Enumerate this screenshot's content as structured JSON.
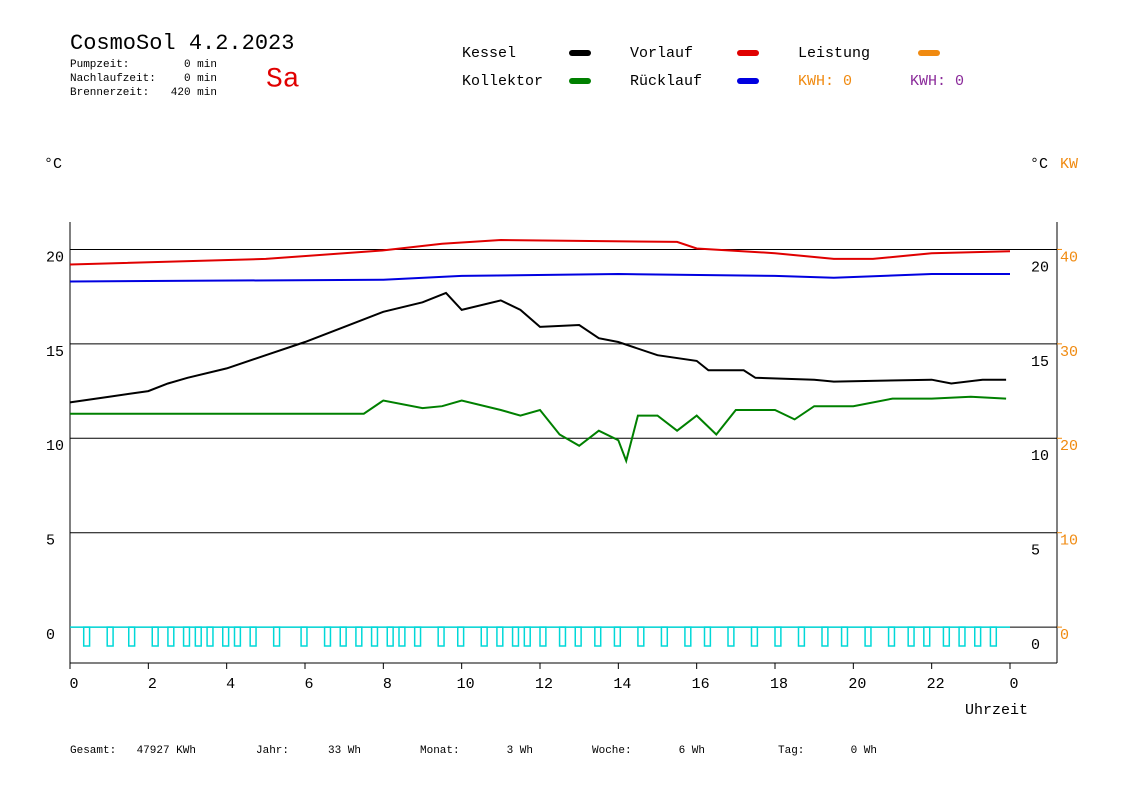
{
  "header": {
    "title": "CosmoSol 4.2.2023",
    "day": "Sa",
    "stats": [
      [
        "Pumpzeit:",
        "0 min"
      ],
      [
        "Nachlaufzeit:",
        "0 min"
      ],
      [
        "Brennerzeit:",
        "420 min"
      ]
    ],
    "kwh": [
      {
        "text": "KWH: 0",
        "color": "#f08a10"
      },
      {
        "text": "KWH: 0",
        "color": "#8a2a9a"
      }
    ]
  },
  "footer": [
    [
      "Gesamt:",
      "47927 KWh"
    ],
    [
      "Jahr:",
      "33 Wh"
    ],
    [
      "Monat:",
      "3 Wh"
    ],
    [
      "Woche:",
      "6 Wh"
    ],
    [
      "Tag:",
      "0 Wh"
    ]
  ],
  "chart_data": {
    "type": "line",
    "y_unit": "°C",
    "y2_unit": "°C",
    "y2_unit2": "KW",
    "x_label": "Uhrzeit",
    "xlim": [
      0,
      24
    ],
    "xticks": [
      0,
      2,
      4,
      6,
      8,
      10,
      12,
      14,
      16,
      18,
      20,
      22,
      {
        "value": 24,
        "label": "0"
      }
    ],
    "ylim": [
      -1.9,
      21.4
    ],
    "yticks": [
      0,
      5,
      10,
      15,
      20
    ],
    "y2lim": [
      -3.8,
      42.8
    ],
    "y2ticks": [
      0,
      10,
      20,
      30,
      40
    ],
    "grid": true,
    "series": [
      {
        "name": "Kessel",
        "color": "#000000",
        "x": [
          0,
          1,
          2,
          2.5,
          3,
          4,
          5,
          6,
          7,
          8,
          9,
          9.6,
          10,
          11,
          11.5,
          12,
          13,
          13.5,
          14,
          15,
          16,
          16.3,
          17.2,
          17.5,
          19,
          19.5,
          22,
          22.5,
          23.3,
          23.9
        ],
        "values": [
          11.9,
          12.2,
          12.5,
          12.9,
          13.2,
          13.7,
          14.4,
          15.1,
          15.9,
          16.7,
          17.2,
          17.7,
          16.8,
          17.3,
          16.8,
          15.9,
          16.0,
          15.3,
          15.1,
          14.4,
          14.1,
          13.6,
          13.6,
          13.2,
          13.1,
          13.0,
          13.1,
          12.9,
          13.1,
          13.1
        ]
      },
      {
        "name": "Vorlauf",
        "color": "#e00000",
        "x": [
          0,
          5,
          8,
          9.5,
          11,
          15.5,
          16,
          18,
          19.5,
          20.5,
          22,
          24
        ],
        "values": [
          19.2,
          19.5,
          19.95,
          20.3,
          20.5,
          20.4,
          20.05,
          19.8,
          19.5,
          19.5,
          19.8,
          19.9
        ]
      },
      {
        "name": "Leistung",
        "color": "#f08a10",
        "axis": "y2",
        "x": [],
        "values": []
      },
      {
        "name": "Kollektor",
        "color": "#008000",
        "x": [
          0,
          5,
          7.5,
          8,
          9,
          9.5,
          10,
          11,
          11.5,
          12,
          12.5,
          13,
          13.5,
          14,
          14.2,
          14.5,
          15,
          15.5,
          16,
          16.5,
          17,
          18,
          18.5,
          19,
          20,
          21,
          22,
          23,
          23.9
        ],
        "values": [
          11.3,
          11.3,
          11.3,
          12.0,
          11.6,
          11.7,
          12.0,
          11.5,
          11.2,
          11.5,
          10.2,
          9.6,
          10.4,
          9.9,
          8.8,
          11.2,
          11.2,
          10.4,
          11.2,
          10.2,
          11.5,
          11.5,
          11.0,
          11.7,
          11.7,
          12.1,
          12.1,
          12.2,
          12.1
        ]
      },
      {
        "name": "Rücklauf",
        "color": "#0000e0",
        "x": [
          0,
          8,
          10,
          14,
          18,
          19.5,
          22,
          24
        ],
        "values": [
          18.3,
          18.4,
          18.6,
          18.7,
          18.6,
          18.5,
          18.7,
          18.7
        ]
      },
      {
        "color": "#00d8d8",
        "x": [
          0.35,
          0.95,
          1.5,
          2.1,
          2.5,
          2.9,
          3.2,
          3.5,
          3.9,
          4.2,
          4.6,
          5.2,
          5.9,
          6.5,
          6.9,
          7.3,
          7.7,
          8.1,
          8.4,
          8.8,
          9.4,
          9.9,
          10.5,
          10.9,
          11.3,
          11.6,
          12.0,
          12.5,
          12.9,
          13.4,
          13.9,
          14.5,
          15.1,
          15.7,
          16.2,
          16.8,
          17.4,
          18.0,
          18.6,
          19.2,
          19.7,
          20.3,
          20.9,
          21.4,
          21.8,
          22.3,
          22.7,
          23.1,
          23.5
        ],
        "values": [
          -1,
          -1,
          -1,
          -1,
          -1,
          -1,
          -1,
          -1,
          -1,
          -1,
          -1,
          -1,
          -1,
          -1,
          -1,
          -1,
          -1,
          -1,
          -1,
          -1,
          -1,
          -1,
          -1,
          -1,
          -1,
          -1,
          -1,
          -1,
          -1,
          -1,
          -1,
          -1,
          -1,
          -1,
          -1,
          -1,
          -1,
          -1,
          -1,
          -1,
          -1,
          -1,
          -1,
          -1,
          -1,
          -1,
          -1,
          -1,
          -1
        ]
      }
    ]
  }
}
